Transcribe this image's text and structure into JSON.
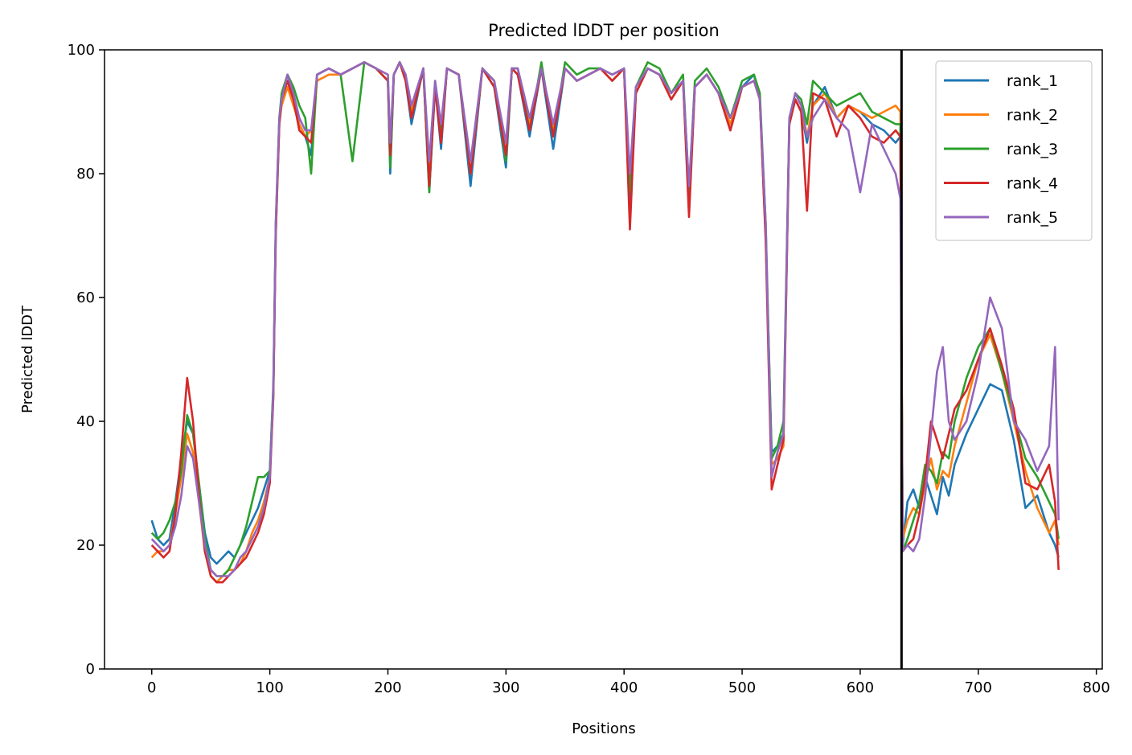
{
  "chart_data": {
    "type": "line",
    "title": "Predicted lDDT per position",
    "xlabel": "Positions",
    "ylabel": "Predicted lDDT",
    "xlim": [
      -40,
      805
    ],
    "ylim": [
      0,
      100
    ],
    "xticks": [
      0,
      100,
      200,
      300,
      400,
      500,
      600,
      700,
      800
    ],
    "yticks": [
      0,
      20,
      40,
      60,
      80,
      100
    ],
    "grid": false,
    "legend_position": "top-right",
    "vline_x": 635,
    "series": [
      {
        "name": "rank_1",
        "color": "#1f77b4",
        "x": [
          0,
          5,
          10,
          15,
          20,
          25,
          30,
          35,
          40,
          45,
          50,
          55,
          60,
          65,
          70,
          75,
          80,
          85,
          90,
          95,
          100,
          103,
          105,
          108,
          110,
          115,
          120,
          125,
          130,
          135,
          140,
          150,
          160,
          170,
          180,
          190,
          200,
          202,
          205,
          210,
          215,
          220,
          230,
          235,
          240,
          245,
          250,
          260,
          270,
          280,
          290,
          300,
          305,
          310,
          320,
          330,
          340,
          350,
          360,
          370,
          380,
          390,
          400,
          405,
          410,
          420,
          430,
          440,
          450,
          455,
          460,
          470,
          480,
          490,
          500,
          510,
          515,
          520,
          525,
          530,
          535,
          540,
          545,
          550,
          555,
          560,
          570,
          580,
          590,
          600,
          610,
          620,
          630,
          634,
          636,
          640,
          645,
          650,
          655,
          660,
          665,
          670,
          675,
          680,
          690,
          700,
          710,
          720,
          730,
          740,
          750,
          760,
          765,
          768
        ],
        "y": [
          24,
          21,
          20,
          21,
          27,
          34,
          40,
          38,
          30,
          22,
          18,
          17,
          18,
          19,
          18,
          20,
          22,
          24,
          26,
          29,
          32,
          45,
          70,
          88,
          92,
          95,
          92,
          88,
          86,
          83,
          96,
          97,
          96,
          97,
          98,
          97,
          95,
          80,
          96,
          98,
          95,
          88,
          97,
          77,
          94,
          84,
          97,
          96,
          78,
          97,
          94,
          81,
          97,
          96,
          86,
          97,
          84,
          97,
          95,
          96,
          97,
          95,
          97,
          74,
          93,
          97,
          96,
          92,
          95,
          75,
          94,
          96,
          93,
          87,
          94,
          96,
          92,
          70,
          35,
          36,
          38,
          88,
          92,
          90,
          85,
          91,
          94,
          89,
          91,
          90,
          88,
          87,
          85,
          86,
          20,
          27,
          29,
          26,
          31,
          28,
          25,
          31,
          28,
          33,
          38,
          42,
          46,
          45,
          37,
          26,
          28,
          22,
          20,
          18
        ]
      },
      {
        "name": "rank_2",
        "color": "#ff7f0e",
        "x": [
          0,
          5,
          10,
          15,
          20,
          25,
          30,
          35,
          40,
          45,
          50,
          55,
          60,
          65,
          70,
          75,
          80,
          85,
          90,
          95,
          100,
          103,
          105,
          108,
          110,
          115,
          120,
          125,
          130,
          135,
          140,
          150,
          160,
          170,
          180,
          190,
          200,
          202,
          205,
          210,
          215,
          220,
          230,
          235,
          240,
          245,
          250,
          260,
          270,
          280,
          290,
          300,
          305,
          310,
          320,
          330,
          340,
          350,
          360,
          370,
          380,
          390,
          400,
          405,
          410,
          420,
          430,
          440,
          450,
          455,
          460,
          470,
          480,
          490,
          500,
          510,
          515,
          520,
          525,
          530,
          535,
          540,
          545,
          550,
          555,
          560,
          570,
          580,
          590,
          600,
          610,
          620,
          630,
          634,
          636,
          640,
          645,
          650,
          655,
          660,
          665,
          670,
          675,
          680,
          690,
          700,
          710,
          720,
          730,
          740,
          750,
          760,
          765,
          768
        ],
        "y": [
          18,
          19,
          19,
          20,
          25,
          31,
          38,
          35,
          27,
          19,
          15,
          14,
          15,
          16,
          16,
          17,
          19,
          22,
          24,
          27,
          31,
          44,
          70,
          88,
          91,
          94,
          91,
          88,
          86,
          87,
          95,
          96,
          96,
          97,
          98,
          97,
          95,
          84,
          96,
          98,
          95,
          90,
          97,
          80,
          94,
          86,
          97,
          96,
          80,
          97,
          95,
          83,
          97,
          96,
          88,
          97,
          87,
          97,
          95,
          96,
          97,
          95,
          97,
          78,
          93,
          97,
          96,
          92,
          95,
          77,
          94,
          96,
          93,
          88,
          94,
          95,
          92,
          70,
          33,
          34,
          36,
          88,
          92,
          90,
          86,
          91,
          93,
          89,
          91,
          90,
          89,
          90,
          91,
          90,
          21,
          24,
          26,
          25,
          30,
          34,
          29,
          32,
          31,
          36,
          43,
          50,
          54,
          48,
          40,
          32,
          26,
          22,
          24,
          20
        ]
      },
      {
        "name": "rank_3",
        "color": "#2ca02c",
        "x": [
          0,
          5,
          10,
          15,
          20,
          25,
          30,
          35,
          40,
          45,
          50,
          55,
          60,
          65,
          70,
          75,
          80,
          85,
          90,
          95,
          100,
          103,
          105,
          108,
          110,
          115,
          120,
          125,
          130,
          135,
          140,
          150,
          160,
          170,
          180,
          190,
          200,
          202,
          205,
          210,
          215,
          220,
          230,
          235,
          240,
          245,
          250,
          260,
          270,
          280,
          290,
          300,
          305,
          310,
          320,
          330,
          340,
          350,
          360,
          370,
          380,
          390,
          400,
          405,
          410,
          420,
          430,
          440,
          450,
          455,
          460,
          470,
          480,
          490,
          500,
          510,
          515,
          520,
          525,
          530,
          535,
          540,
          545,
          550,
          555,
          560,
          570,
          580,
          590,
          600,
          610,
          620,
          630,
          634,
          636,
          640,
          645,
          650,
          655,
          660,
          665,
          670,
          675,
          680,
          690,
          700,
          710,
          720,
          730,
          740,
          750,
          760,
          765,
          768
        ],
        "y": [
          22,
          21,
          22,
          24,
          27,
          32,
          41,
          38,
          30,
          21,
          16,
          15,
          15,
          16,
          18,
          20,
          23,
          27,
          31,
          31,
          32,
          46,
          72,
          89,
          93,
          96,
          94,
          91,
          89,
          80,
          96,
          97,
          96,
          82,
          98,
          97,
          95,
          81,
          96,
          98,
          96,
          89,
          97,
          77,
          95,
          86,
          97,
          96,
          80,
          97,
          95,
          82,
          97,
          97,
          87,
          98,
          86,
          98,
          96,
          97,
          97,
          96,
          97,
          77,
          94,
          98,
          97,
          93,
          96,
          77,
          95,
          97,
          94,
          89,
          95,
          96,
          93,
          72,
          34,
          36,
          40,
          89,
          93,
          92,
          88,
          95,
          93,
          91,
          92,
          93,
          90,
          89,
          88,
          88,
          19,
          21,
          24,
          27,
          33,
          32,
          30,
          35,
          34,
          40,
          47,
          52,
          55,
          48,
          41,
          34,
          31,
          27,
          25,
          21
        ]
      },
      {
        "name": "rank_4",
        "color": "#d62728",
        "x": [
          0,
          5,
          10,
          15,
          20,
          25,
          30,
          35,
          40,
          45,
          50,
          55,
          60,
          65,
          70,
          75,
          80,
          85,
          90,
          95,
          100,
          103,
          105,
          108,
          110,
          115,
          120,
          125,
          130,
          135,
          140,
          150,
          160,
          170,
          180,
          190,
          200,
          202,
          205,
          210,
          215,
          220,
          230,
          235,
          240,
          245,
          250,
          260,
          270,
          280,
          290,
          300,
          305,
          310,
          320,
          330,
          340,
          350,
          360,
          370,
          380,
          390,
          400,
          405,
          410,
          420,
          430,
          440,
          450,
          455,
          460,
          470,
          480,
          490,
          500,
          510,
          515,
          520,
          525,
          530,
          535,
          540,
          545,
          550,
          555,
          560,
          570,
          580,
          590,
          600,
          610,
          620,
          630,
          634,
          636,
          640,
          645,
          650,
          655,
          660,
          665,
          670,
          675,
          680,
          690,
          700,
          710,
          720,
          730,
          740,
          750,
          760,
          765,
          768
        ],
        "y": [
          20,
          19,
          18,
          19,
          25,
          35,
          47,
          40,
          28,
          19,
          15,
          14,
          14,
          15,
          16,
          17,
          18,
          20,
          22,
          25,
          30,
          44,
          71,
          88,
          92,
          95,
          92,
          87,
          86,
          85,
          96,
          97,
          96,
          97,
          98,
          97,
          95,
          83,
          96,
          98,
          95,
          89,
          97,
          78,
          94,
          85,
          97,
          96,
          80,
          97,
          94,
          83,
          97,
          96,
          87,
          97,
          86,
          97,
          95,
          96,
          97,
          95,
          97,
          71,
          93,
          97,
          96,
          92,
          95,
          73,
          94,
          96,
          93,
          87,
          94,
          95,
          92,
          69,
          29,
          33,
          37,
          88,
          92,
          90,
          74,
          93,
          92,
          86,
          91,
          89,
          86,
          85,
          87,
          86,
          19,
          20,
          21,
          25,
          31,
          40,
          37,
          34,
          38,
          42,
          45,
          50,
          55,
          49,
          42,
          30,
          29,
          33,
          27,
          16
        ]
      },
      {
        "name": "rank_5",
        "color": "#9467bd",
        "x": [
          0,
          5,
          10,
          15,
          20,
          25,
          30,
          35,
          40,
          45,
          50,
          55,
          60,
          65,
          70,
          75,
          80,
          85,
          90,
          95,
          100,
          103,
          105,
          108,
          110,
          115,
          120,
          125,
          130,
          135,
          140,
          150,
          160,
          170,
          180,
          190,
          200,
          202,
          205,
          210,
          215,
          220,
          230,
          235,
          240,
          245,
          250,
          260,
          270,
          280,
          290,
          300,
          305,
          310,
          320,
          330,
          340,
          350,
          360,
          370,
          380,
          390,
          400,
          405,
          410,
          420,
          430,
          440,
          450,
          455,
          460,
          470,
          480,
          490,
          500,
          510,
          515,
          520,
          525,
          530,
          535,
          540,
          545,
          550,
          555,
          560,
          570,
          580,
          590,
          600,
          610,
          620,
          630,
          634,
          636,
          640,
          645,
          650,
          655,
          660,
          665,
          670,
          675,
          680,
          690,
          700,
          710,
          720,
          730,
          740,
          750,
          760,
          765,
          768
        ],
        "y": [
          21,
          20,
          19,
          20,
          23,
          28,
          36,
          34,
          27,
          20,
          16,
          15,
          15,
          15,
          16,
          18,
          19,
          21,
          23,
          26,
          31,
          45,
          72,
          89,
          92,
          96,
          93,
          89,
          87,
          87,
          96,
          97,
          96,
          97,
          98,
          97,
          96,
          85,
          96,
          98,
          96,
          91,
          97,
          82,
          95,
          88,
          97,
          96,
          82,
          97,
          95,
          85,
          97,
          97,
          89,
          97,
          88,
          97,
          95,
          96,
          97,
          96,
          97,
          80,
          94,
          97,
          96,
          93,
          95,
          78,
          94,
          96,
          93,
          89,
          94,
          95,
          92,
          72,
          31,
          35,
          38,
          89,
          93,
          91,
          86,
          89,
          92,
          89,
          87,
          77,
          88,
          84,
          80,
          76,
          19,
          20,
          19,
          21,
          28,
          38,
          48,
          52,
          40,
          37,
          40,
          48,
          60,
          55,
          40,
          37,
          32,
          36,
          52,
          24
        ]
      }
    ]
  }
}
